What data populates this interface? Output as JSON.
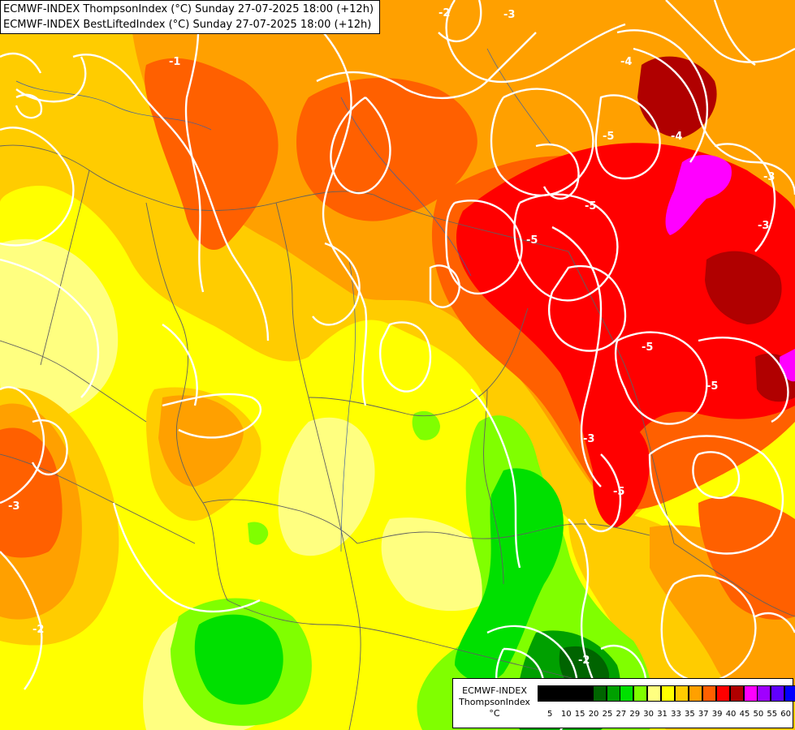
{
  "title": {
    "line1": "ECMWF-INDEX ThompsonIndex (°C) Sunday 27-07-2025 18:00 (+12h)",
    "line2": "ECMWF-INDEX BestLiftedIndex (°C) Sunday 27-07-2025 18:00 (+12h)"
  },
  "legend": {
    "line1": "ECMWF-INDEX",
    "line2": "ThompsonIndex",
    "line3": "°C",
    "classes": [
      {
        "tick": "5",
        "color": "#000000"
      },
      {
        "tick": "10",
        "color": "#000000"
      },
      {
        "tick": "15",
        "color": "#000000"
      },
      {
        "tick": "20",
        "color": "#000000"
      },
      {
        "tick": "25",
        "color": "#006400"
      },
      {
        "tick": "27",
        "color": "#00a000"
      },
      {
        "tick": "29",
        "color": "#00e000"
      },
      {
        "tick": "30",
        "color": "#80ff00"
      },
      {
        "tick": "31",
        "color": "#ffff80"
      },
      {
        "tick": "33",
        "color": "#ffff00"
      },
      {
        "tick": "35",
        "color": "#ffcc00"
      },
      {
        "tick": "37",
        "color": "#ffa000"
      },
      {
        "tick": "39",
        "color": "#ff6000"
      },
      {
        "tick": "40",
        "color": "#ff0000"
      },
      {
        "tick": "45",
        "color": "#b00000"
      },
      {
        "tick": "50",
        "color": "#ff00ff"
      },
      {
        "tick": "55",
        "color": "#a000ff"
      },
      {
        "tick": "60",
        "color": "#6000ff"
      },
      {
        "tick": "",
        "color": "#0000ff"
      }
    ]
  },
  "contour_labels": [
    "-1",
    "-2",
    "-3",
    "-4",
    "-5",
    "-3",
    "-5",
    "-5",
    "-5",
    "-4",
    "-3",
    "-5",
    "-3",
    "-5",
    "-3",
    "-2",
    "-2"
  ]
}
